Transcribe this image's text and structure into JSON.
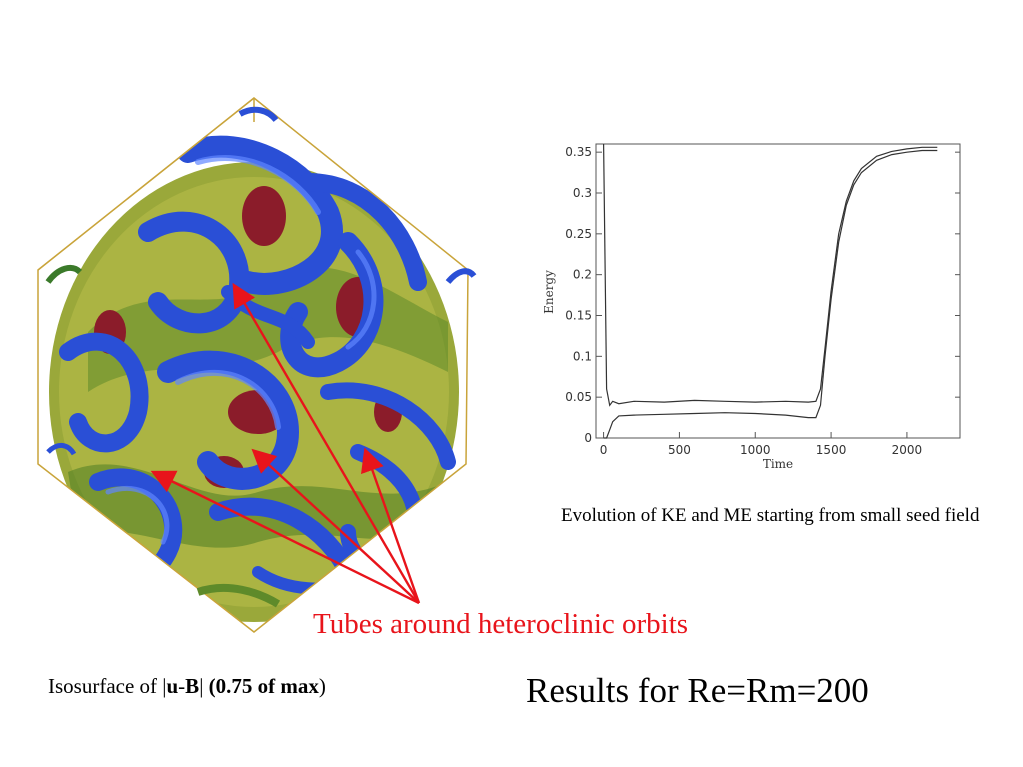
{
  "slide": {
    "chart_caption": "Evolution of KE and ME starting from small seed field",
    "tubes_label": "Tubes around heteroclinic orbits",
    "iso_caption": {
      "prefix": "Isosurface of |",
      "bold1": "u",
      "dash": "-",
      "bold2": "B",
      "bar": "|",
      "bold3": " (0.75 of max",
      "close": ")"
    },
    "results": "Results for Re=Rm=200",
    "colors": {
      "arrow": "#e8141b",
      "blue_tube": "#2a4fd6",
      "olive_surface": "#a8b23a",
      "maroon_blob": "#8b1c2a",
      "cube_edges": "#c9a43a"
    }
  },
  "chart_data": {
    "type": "line",
    "xlabel": "Time",
    "ylabel": "Energy",
    "xlim": [
      -50,
      2350
    ],
    "ylim": [
      0,
      0.36
    ],
    "x_ticks": [
      "0",
      "500",
      "1000",
      "1500",
      "2000"
    ],
    "y_ticks": [
      "0",
      "0.05",
      "0.1",
      "0.15",
      "0.2",
      "0.25",
      "0.3",
      "0.35"
    ],
    "grid": false,
    "series": [
      {
        "x": [
          0,
          20,
          40,
          60,
          100,
          200,
          400,
          600,
          800,
          1000,
          1200,
          1350,
          1400,
          1430,
          1460,
          1500,
          1550,
          1600,
          1650,
          1700,
          1800,
          1900,
          2000,
          2100,
          2200
        ],
        "y": [
          0.36,
          0.06,
          0.04,
          0.045,
          0.042,
          0.045,
          0.044,
          0.046,
          0.045,
          0.044,
          0.045,
          0.044,
          0.045,
          0.06,
          0.11,
          0.18,
          0.25,
          0.29,
          0.315,
          0.33,
          0.345,
          0.351,
          0.354,
          0.356,
          0.356
        ]
      },
      {
        "x": [
          0,
          20,
          40,
          60,
          100,
          200,
          400,
          600,
          800,
          1000,
          1200,
          1350,
          1400,
          1430,
          1460,
          1500,
          1550,
          1600,
          1650,
          1700,
          1800,
          1900,
          2000,
          2100,
          2200
        ],
        "y": [
          0.0,
          0.0,
          0.01,
          0.02,
          0.027,
          0.028,
          0.029,
          0.03,
          0.031,
          0.03,
          0.028,
          0.025,
          0.025,
          0.04,
          0.1,
          0.17,
          0.24,
          0.285,
          0.31,
          0.325,
          0.34,
          0.347,
          0.35,
          0.352,
          0.352
        ]
      }
    ]
  }
}
